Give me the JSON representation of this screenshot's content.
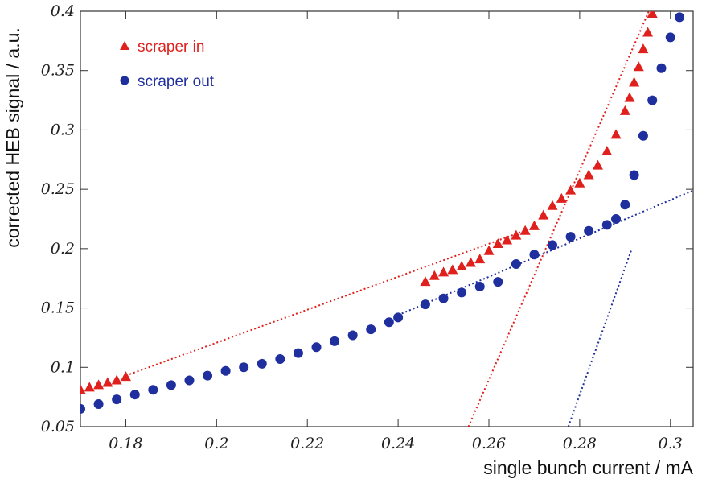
{
  "chart_data": {
    "type": "scatter",
    "xlabel": "single bunch current / mA",
    "ylabel": "corrected HEB signal / a.u.",
    "xlim": [
      0.17,
      0.305
    ],
    "ylim": [
      0.05,
      0.4
    ],
    "x_ticks": [
      0.18,
      0.2,
      0.22,
      0.24,
      0.26,
      0.28,
      0.3
    ],
    "x_tick_labels": [
      "0.18",
      "0.2",
      "0.22",
      "0.24",
      "0.26",
      "0.28",
      "0.3"
    ],
    "y_ticks": [
      0.05,
      0.1,
      0.15,
      0.2,
      0.25,
      0.3,
      0.35,
      0.4
    ],
    "y_tick_labels": [
      "0.05",
      "0.1",
      "0.15",
      "0.2",
      "0.25",
      "0.3",
      "0.35",
      "0.4"
    ],
    "grid": false,
    "legend_position": "top-left",
    "series": [
      {
        "name": "scraper in",
        "marker": "triangle",
        "color": "#e0201c",
        "x": [
          0.17,
          0.172,
          0.174,
          0.176,
          0.178,
          0.18,
          0.246,
          0.248,
          0.25,
          0.252,
          0.254,
          0.256,
          0.258,
          0.26,
          0.262,
          0.264,
          0.266,
          0.268,
          0.27,
          0.272,
          0.274,
          0.276,
          0.278,
          0.28,
          0.282,
          0.284,
          0.286,
          0.288,
          0.29,
          0.291,
          0.292,
          0.293,
          0.294,
          0.295,
          0.296
        ],
        "y": [
          0.081,
          0.083,
          0.085,
          0.087,
          0.089,
          0.092,
          0.172,
          0.177,
          0.18,
          0.182,
          0.185,
          0.188,
          0.191,
          0.198,
          0.204,
          0.207,
          0.211,
          0.215,
          0.219,
          0.228,
          0.236,
          0.242,
          0.249,
          0.255,
          0.262,
          0.27,
          0.282,
          0.296,
          0.316,
          0.327,
          0.34,
          0.353,
          0.368,
          0.382,
          0.398
        ]
      },
      {
        "name": "scraper out",
        "marker": "circle",
        "color": "#1f2f9e",
        "x": [
          0.17,
          0.174,
          0.178,
          0.182,
          0.186,
          0.19,
          0.194,
          0.198,
          0.202,
          0.206,
          0.21,
          0.214,
          0.218,
          0.222,
          0.226,
          0.23,
          0.234,
          0.238,
          0.24,
          0.246,
          0.25,
          0.254,
          0.258,
          0.262,
          0.266,
          0.27,
          0.274,
          0.278,
          0.282,
          0.286,
          0.288,
          0.29,
          0.292,
          0.294,
          0.296,
          0.298,
          0.3,
          0.302
        ],
        "y": [
          0.065,
          0.069,
          0.073,
          0.077,
          0.081,
          0.085,
          0.089,
          0.093,
          0.097,
          0.1,
          0.103,
          0.107,
          0.112,
          0.117,
          0.122,
          0.127,
          0.132,
          0.138,
          0.142,
          0.153,
          0.158,
          0.163,
          0.168,
          0.172,
          0.187,
          0.195,
          0.203,
          0.21,
          0.215,
          0.22,
          0.225,
          0.237,
          0.262,
          0.295,
          0.325,
          0.352,
          0.378,
          0.395
        ]
      }
    ],
    "fit_lines": [
      {
        "color": "#e0201c",
        "x": [
          0.18,
          0.27
        ],
        "y": [
          0.093,
          0.218
        ]
      },
      {
        "color": "#e0201c",
        "x": [
          0.2555,
          0.2975
        ],
        "y": [
          0.05,
          0.42
        ]
      },
      {
        "color": "#1f2f9e",
        "x": [
          0.24,
          0.305
        ],
        "y": [
          0.144,
          0.249
        ]
      },
      {
        "color": "#1f2f9e",
        "x": [
          0.2775,
          0.2915
        ],
        "y": [
          0.05,
          0.2
        ]
      }
    ]
  }
}
